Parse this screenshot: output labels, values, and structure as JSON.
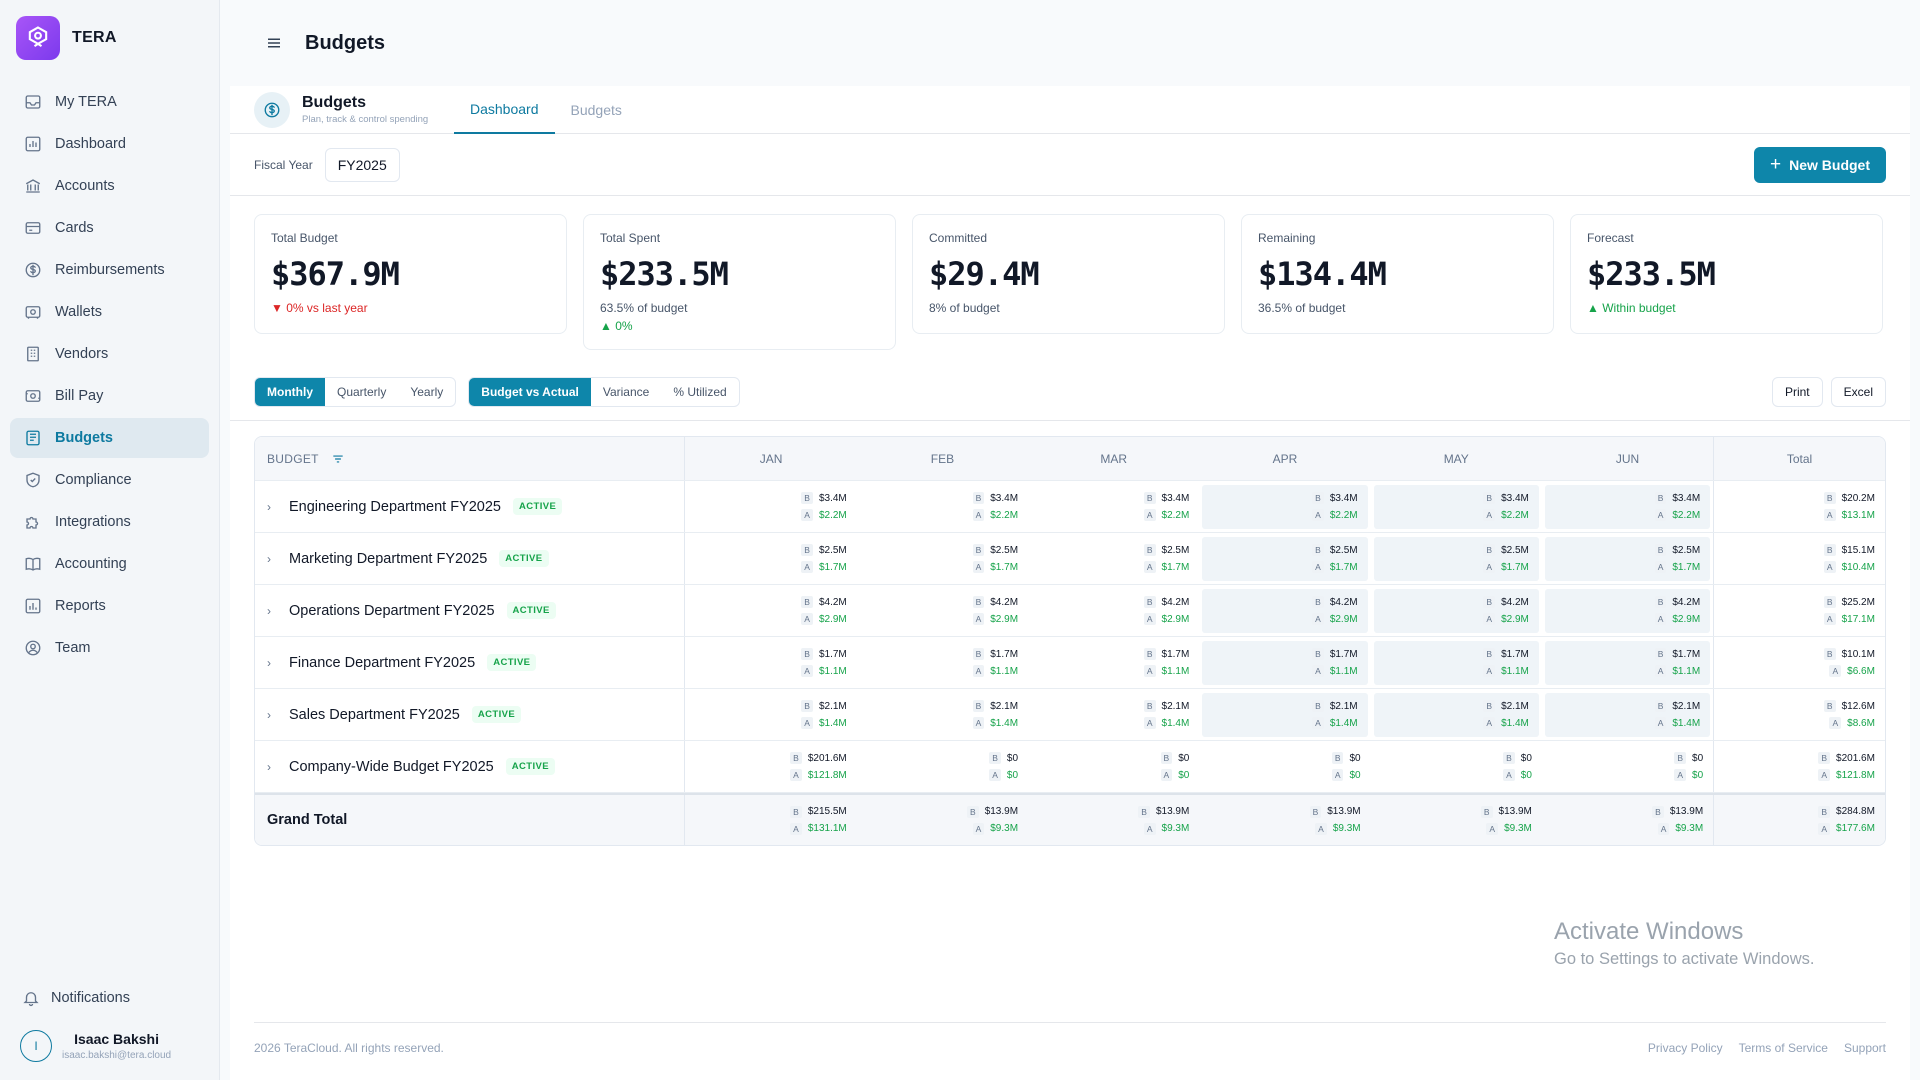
{
  "app": {
    "name": "TERA"
  },
  "sidebar": {
    "items": [
      {
        "label": "My TERA",
        "icon": "inbox-icon"
      },
      {
        "label": "Dashboard",
        "icon": "chart-icon"
      },
      {
        "label": "Accounts",
        "icon": "bank-icon"
      },
      {
        "label": "Cards",
        "icon": "card-icon"
      },
      {
        "label": "Reimbursements",
        "icon": "dollar-circle-icon"
      },
      {
        "label": "Wallets",
        "icon": "wallet-icon"
      },
      {
        "label": "Vendors",
        "icon": "building-icon"
      },
      {
        "label": "Bill Pay",
        "icon": "bill-icon"
      },
      {
        "label": "Budgets",
        "icon": "budget-icon",
        "active": true
      },
      {
        "label": "Compliance",
        "icon": "shield-icon"
      },
      {
        "label": "Integrations",
        "icon": "puzzle-icon"
      },
      {
        "label": "Accounting",
        "icon": "book-icon"
      },
      {
        "label": "Reports",
        "icon": "report-icon"
      },
      {
        "label": "Team",
        "icon": "user-circle-icon"
      }
    ],
    "notifications": "Notifications",
    "user": {
      "initial": "I",
      "name": "Isaac Bakshi",
      "email": "isaac.bakshi@tera.cloud"
    }
  },
  "header": {
    "title": "Budgets"
  },
  "subheader": {
    "title": "Budgets",
    "description": "Plan, track & control spending",
    "tabs": [
      "Dashboard",
      "Budgets"
    ]
  },
  "filters": {
    "fiscal_year_label": "Fiscal Year",
    "fiscal_year": "FY2025",
    "new_budget": "New Budget"
  },
  "cards": [
    {
      "label": "Total Budget",
      "value": "$367.9M",
      "sub": "▼ 0% vs last year"
    },
    {
      "label": "Total Spent",
      "value": "$233.5M",
      "sub": "63.5% of budget",
      "sub2": "▲ 0%"
    },
    {
      "label": "Committed",
      "value": "$29.4M",
      "sub": "8% of budget"
    },
    {
      "label": "Remaining",
      "value": "$134.4M",
      "sub": "36.5% of budget"
    },
    {
      "label": "Forecast",
      "value": "$233.5M",
      "sub": "▲ Within budget"
    }
  ],
  "toolbar": {
    "period": [
      "Monthly",
      "Quarterly",
      "Yearly"
    ],
    "view": [
      "Budget vs Actual",
      "Variance",
      "% Utilized"
    ],
    "print": "Print",
    "excel": "Excel"
  },
  "table": {
    "budget_header": "BUDGET",
    "columns": [
      "JAN",
      "FEB",
      "MAR",
      "APR",
      "MAY",
      "JUN",
      "Total"
    ],
    "tag_b": "B",
    "tag_a": "A",
    "status": "ACTIVE",
    "rows": [
      {
        "name": "Engineering Department FY2025",
        "b": "$3.4M",
        "a": "$2.2M",
        "tb": "$20.2M",
        "ta": "$13.1M"
      },
      {
        "name": "Marketing Department FY2025",
        "b": "$2.5M",
        "a": "$1.7M",
        "tb": "$15.1M",
        "ta": "$10.4M"
      },
      {
        "name": "Operations Department FY2025",
        "b": "$4.2M",
        "a": "$2.9M",
        "tb": "$25.2M",
        "ta": "$17.1M"
      },
      {
        "name": "Finance Department FY2025",
        "b": "$1.7M",
        "a": "$1.1M",
        "tb": "$10.1M",
        "ta": "$6.6M"
      },
      {
        "name": "Sales Department FY2025",
        "b": "$2.1M",
        "a": "$1.4M",
        "tb": "$12.6M",
        "ta": "$8.6M"
      },
      {
        "name": "Company-Wide Budget FY2025",
        "jan_b": "$201.6M",
        "jan_a": "$121.8M",
        "b": "$0",
        "a": "$0",
        "tb": "$201.6M",
        "ta": "$121.8M"
      }
    ],
    "grand": {
      "label": "Grand Total",
      "jan_b": "$215.5M",
      "jan_a": "$131.1M",
      "b": "$13.9M",
      "a": "$9.3M",
      "tb": "$284.8M",
      "ta": "$177.6M"
    }
  },
  "watermark": {
    "line1": "Activate Windows",
    "line2": "Go to Settings to activate Windows."
  },
  "footer": {
    "copyright": "2026 TeraCloud. All rights reserved.",
    "links": [
      "Privacy Policy",
      "Terms of Service",
      "Support"
    ]
  },
  "colors": {
    "accent": "#0e86aa",
    "active_nav_bg": "#dfe9f0",
    "positive": "#16a34a",
    "negative": "#dc2626"
  }
}
